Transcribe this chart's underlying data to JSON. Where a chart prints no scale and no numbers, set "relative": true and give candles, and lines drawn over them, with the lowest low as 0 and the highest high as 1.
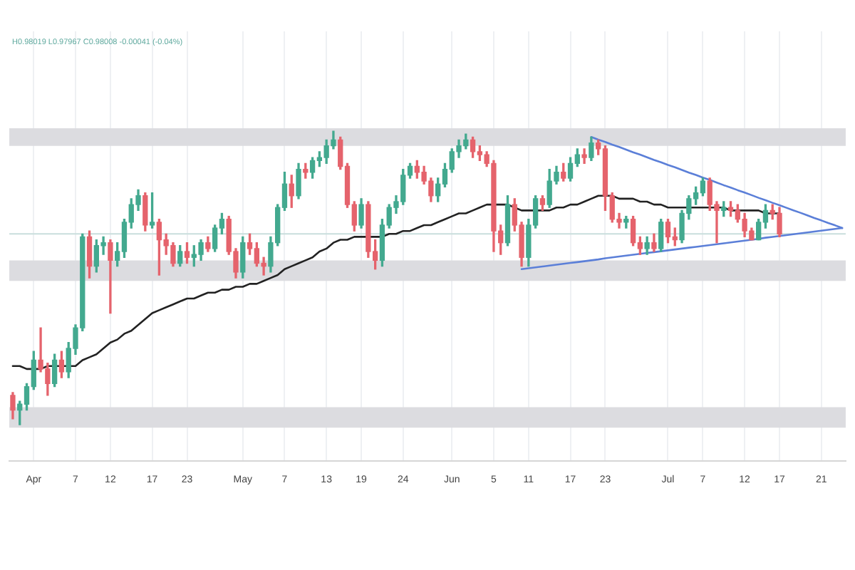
{
  "chart_data": {
    "type": "candlestick",
    "relative": true,
    "categories": [
      null,
      null,
      null,
      "Apr",
      null,
      null,
      null,
      null,
      null,
      "7",
      null,
      null,
      null,
      null,
      "12",
      null,
      null,
      null,
      null,
      null,
      "17",
      null,
      null,
      null,
      null,
      "23",
      null,
      null,
      null,
      null,
      null,
      null,
      null,
      "May",
      null,
      null,
      null,
      null,
      null,
      "7",
      null,
      null,
      null,
      null,
      null,
      "13",
      null,
      null,
      null,
      null,
      "19",
      null,
      null,
      null,
      null,
      null,
      "24",
      null,
      null,
      null,
      null,
      null,
      null,
      "Jun",
      null,
      null,
      null,
      null,
      null,
      "5",
      null,
      null,
      null,
      null,
      "11",
      null,
      null,
      null,
      null,
      null,
      "17",
      null,
      null,
      null,
      null,
      "23",
      null,
      null,
      null,
      null,
      null,
      null,
      null,
      null,
      "Jul",
      null,
      null,
      null,
      null,
      "7",
      null,
      null,
      null,
      null,
      null,
      "12",
      null,
      null,
      null,
      null,
      "17",
      null,
      null,
      null,
      null,
      null,
      "21",
      null,
      null,
      null
    ],
    "series": [
      {
        "ohlc": [
          [
            0.1,
            0.11,
            0.02,
            0.05
          ],
          [
            0.05,
            0.08,
            0,
            0.07
          ],
          [
            0.07,
            0.14,
            0.05,
            0.13
          ],
          [
            0.13,
            0.25,
            0.12,
            0.22
          ],
          [
            0.22,
            0.33,
            0.18,
            0.19
          ],
          [
            0.19,
            0.21,
            0.1,
            0.14
          ],
          [
            0.14,
            0.24,
            0.13,
            0.22
          ],
          [
            0.22,
            0.25,
            0.16,
            0.18
          ],
          [
            0.18,
            0.28,
            0.16,
            0.26
          ],
          [
            0.26,
            0.34,
            0.24,
            0.33
          ],
          [
            0.33,
            0.65,
            0.32,
            0.64
          ],
          [
            0.64,
            0.66,
            0.5,
            0.54
          ],
          [
            0.54,
            0.63,
            0.52,
            0.61
          ],
          [
            0.61,
            0.64,
            0.58,
            0.62
          ],
          [
            0.62,
            0.63,
            0.38,
            0.56
          ],
          [
            0.56,
            0.62,
            0.54,
            0.59
          ],
          [
            0.59,
            0.7,
            0.57,
            0.69
          ],
          [
            0.69,
            0.77,
            0.67,
            0.75
          ],
          [
            0.75,
            0.8,
            0.73,
            0.78
          ],
          [
            0.78,
            0.79,
            0.66,
            0.68
          ],
          [
            0.68,
            0.79,
            0.67,
            0.69
          ],
          [
            0.69,
            0.7,
            0.51,
            0.63
          ],
          [
            0.63,
            0.65,
            0.58,
            0.61
          ],
          [
            0.61,
            0.62,
            0.54,
            0.55
          ],
          [
            0.55,
            0.61,
            0.54,
            0.59
          ],
          [
            0.59,
            0.62,
            0.55,
            0.57
          ],
          [
            0.57,
            0.61,
            0.54,
            0.58
          ],
          [
            0.58,
            0.63,
            0.56,
            0.62
          ],
          [
            0.62,
            0.64,
            0.59,
            0.6
          ],
          [
            0.6,
            0.68,
            0.59,
            0.67
          ],
          [
            0.67,
            0.72,
            0.65,
            0.7
          ],
          [
            0.7,
            0.71,
            0.58,
            0.59
          ],
          [
            0.59,
            0.6,
            0.5,
            0.52
          ],
          [
            0.52,
            0.64,
            0.5,
            0.62
          ],
          [
            0.62,
            0.65,
            0.58,
            0.6
          ],
          [
            0.6,
            0.62,
            0.54,
            0.55
          ],
          [
            0.55,
            0.57,
            0.51,
            0.54
          ],
          [
            0.54,
            0.64,
            0.52,
            0.62
          ],
          [
            0.62,
            0.75,
            0.61,
            0.74
          ],
          [
            0.74,
            0.86,
            0.73,
            0.82
          ],
          [
            0.82,
            0.85,
            0.74,
            0.78
          ],
          [
            0.78,
            0.89,
            0.77,
            0.87
          ],
          [
            0.87,
            0.89,
            0.84,
            0.86
          ],
          [
            0.86,
            0.91,
            0.84,
            0.9
          ],
          [
            0.9,
            0.93,
            0.88,
            0.91
          ],
          [
            0.91,
            0.97,
            0.89,
            0.95
          ],
          [
            0.95,
            1,
            0.94,
            0.97
          ],
          [
            0.97,
            0.98,
            0.87,
            0.88
          ],
          [
            0.88,
            0.89,
            0.74,
            0.75
          ],
          [
            0.75,
            0.76,
            0.66,
            0.68
          ],
          [
            0.68,
            0.77,
            0.67,
            0.75
          ],
          [
            0.75,
            0.76,
            0.57,
            0.59
          ],
          [
            0.59,
            0.63,
            0.53,
            0.56
          ],
          [
            0.56,
            0.7,
            0.54,
            0.68
          ],
          [
            0.68,
            0.75,
            0.67,
            0.74
          ],
          [
            0.74,
            0.78,
            0.72,
            0.76
          ],
          [
            0.76,
            0.87,
            0.75,
            0.85
          ],
          [
            0.85,
            0.89,
            0.84,
            0.88
          ],
          [
            0.88,
            0.9,
            0.84,
            0.86
          ],
          [
            0.86,
            0.88,
            0.82,
            0.83
          ],
          [
            0.83,
            0.84,
            0.76,
            0.78
          ],
          [
            0.78,
            0.84,
            0.76,
            0.82
          ],
          [
            0.82,
            0.89,
            0.81,
            0.87
          ],
          [
            0.87,
            0.94,
            0.86,
            0.93
          ],
          [
            0.93,
            0.97,
            0.91,
            0.95
          ],
          [
            0.95,
            0.99,
            0.94,
            0.97
          ],
          [
            0.97,
            0.98,
            0.91,
            0.93
          ],
          [
            0.93,
            0.95,
            0.9,
            0.92
          ],
          [
            0.92,
            0.93,
            0.88,
            0.89
          ],
          [
            0.89,
            0.9,
            0.59,
            0.66
          ],
          [
            0.66,
            0.68,
            0.58,
            0.62
          ],
          [
            0.62,
            0.78,
            0.61,
            0.75
          ],
          [
            0.75,
            0.77,
            0.66,
            0.68
          ],
          [
            0.68,
            0.69,
            0.54,
            0.57
          ],
          [
            0.57,
            0.7,
            0.54,
            0.68
          ],
          [
            0.68,
            0.78,
            0.67,
            0.77
          ],
          [
            0.77,
            0.78,
            0.73,
            0.75
          ],
          [
            0.75,
            0.87,
            0.74,
            0.83
          ],
          [
            0.83,
            0.88,
            0.82,
            0.86
          ],
          [
            0.86,
            0.89,
            0.83,
            0.84
          ],
          [
            0.84,
            0.91,
            0.83,
            0.89
          ],
          [
            0.89,
            0.94,
            0.88,
            0.92
          ],
          [
            0.92,
            0.94,
            0.89,
            0.91
          ],
          [
            0.91,
            0.98,
            0.9,
            0.96
          ],
          [
            0.96,
            0.97,
            0.92,
            0.94
          ],
          [
            0.94,
            0.95,
            0.73,
            0.78
          ],
          [
            0.78,
            0.79,
            0.69,
            0.7
          ],
          [
            0.7,
            0.72,
            0.67,
            0.69
          ],
          [
            0.69,
            0.71,
            0.67,
            0.7
          ],
          [
            0.7,
            0.71,
            0.61,
            0.62
          ],
          [
            0.62,
            0.64,
            0.58,
            0.6
          ],
          [
            0.6,
            0.64,
            0.58,
            0.62
          ],
          [
            0.62,
            0.65,
            0.59,
            0.6
          ],
          [
            0.6,
            0.7,
            0.59,
            0.69
          ],
          [
            0.69,
            0.7,
            0.62,
            0.64
          ],
          [
            0.64,
            0.67,
            0.61,
            0.63
          ],
          [
            0.63,
            0.73,
            0.62,
            0.72
          ],
          [
            0.72,
            0.78,
            0.7,
            0.77
          ],
          [
            0.77,
            0.81,
            0.75,
            0.79
          ],
          [
            0.79,
            0.84,
            0.78,
            0.83
          ],
          [
            0.83,
            0.84,
            0.73,
            0.75
          ],
          [
            0.75,
            0.76,
            0.62,
            0.73
          ],
          [
            0.73,
            0.76,
            0.71,
            0.74
          ],
          [
            0.74,
            0.76,
            0.71,
            0.73
          ],
          [
            0.73,
            0.75,
            0.69,
            0.7
          ],
          [
            0.7,
            0.72,
            0.64,
            0.66
          ],
          [
            0.66,
            0.67,
            0.63,
            0.63
          ],
          [
            0.63,
            0.7,
            0.63,
            0.69
          ],
          [
            0.69,
            0.75,
            0.67,
            0.73
          ],
          [
            0.73,
            0.75,
            0.7,
            0.72
          ],
          [
            0.72,
            0.74,
            0.64,
            0.65
          ],
          null,
          null,
          null,
          null,
          null,
          null,
          null,
          null,
          null
        ],
        "colors": [
          "#e5636c",
          "#43a98f",
          "#43a98f",
          "#43a98f",
          "#e5636c",
          "#e5636c",
          "#43a98f",
          "#e5636c",
          "#43a98f",
          "#43a98f",
          "#43a98f",
          "#e5636c",
          "#43a98f",
          "#43a98f",
          "#e5636c",
          "#43a98f",
          "#43a98f",
          "#43a98f",
          "#43a98f",
          "#e5636c",
          "#43a98f",
          "#e5636c",
          "#e5636c",
          "#e5636c",
          "#43a98f",
          "#e5636c",
          "#43a98f",
          "#43a98f",
          "#e5636c",
          "#43a98f",
          "#43a98f",
          "#e5636c",
          "#e5636c",
          "#43a98f",
          "#e5636c",
          "#e5636c",
          "#e5636c",
          "#43a98f",
          "#43a98f",
          "#43a98f",
          "#e5636c",
          "#43a98f",
          "#e5636c",
          "#43a98f",
          "#43a98f",
          "#43a98f",
          "#43a98f",
          "#e5636c",
          "#e5636c",
          "#e5636c",
          "#43a98f",
          "#e5636c",
          "#e5636c",
          "#43a98f",
          "#43a98f",
          "#43a98f",
          "#43a98f",
          "#43a98f",
          "#e5636c",
          "#e5636c",
          "#e5636c",
          "#43a98f",
          "#43a98f",
          "#43a98f",
          "#43a98f",
          "#43a98f",
          "#e5636c",
          "#e5636c",
          "#e5636c",
          "#e5636c",
          "#e5636c",
          "#43a98f",
          "#e5636c",
          "#e5636c",
          "#43a98f",
          "#43a98f",
          "#e5636c",
          "#43a98f",
          "#43a98f",
          "#e5636c",
          "#43a98f",
          "#43a98f",
          "#e5636c",
          "#43a98f",
          "#e5636c",
          "#e5636c",
          "#e5636c",
          "#e5636c",
          "#43a98f",
          "#e5636c",
          "#e5636c",
          "#43a98f",
          "#e5636c",
          "#43a98f",
          "#e5636c",
          "#e5636c",
          "#43a98f",
          "#43a98f",
          "#43a98f",
          "#43a98f",
          "#e5636c",
          "#e5636c",
          "#43a98f",
          "#e5636c",
          "#e5636c",
          "#e5636c",
          "#e5636c",
          "#43a98f",
          "#43a98f",
          "#e5636c",
          "#e5636c",
          null,
          null,
          null,
          null,
          null,
          null,
          null,
          null,
          null
        ]
      },
      {
        "type": "line",
        "color": "#222222",
        "values": [
          0.2,
          0.2,
          0.19,
          0.19,
          0.19,
          0.2,
          0.2,
          0.2,
          0.2,
          0.2,
          0.22,
          0.23,
          0.24,
          0.26,
          0.28,
          0.29,
          0.31,
          0.32,
          0.34,
          0.36,
          0.38,
          0.39,
          0.4,
          0.41,
          0.42,
          0.43,
          0.43,
          0.44,
          0.45,
          0.45,
          0.46,
          0.46,
          0.47,
          0.47,
          0.48,
          0.48,
          0.49,
          0.5,
          0.51,
          0.53,
          0.54,
          0.55,
          0.56,
          0.57,
          0.59,
          0.6,
          0.62,
          0.63,
          0.63,
          0.64,
          0.64,
          0.64,
          0.64,
          0.64,
          0.65,
          0.65,
          0.66,
          0.66,
          0.67,
          0.68,
          0.68,
          0.69,
          0.7,
          0.71,
          0.72,
          0.72,
          0.73,
          0.74,
          0.75,
          0.75,
          0.75,
          0.75,
          0.74,
          0.73,
          0.73,
          0.73,
          0.73,
          0.73,
          0.74,
          0.74,
          0.75,
          0.75,
          0.76,
          0.77,
          0.78,
          0.78,
          0.78,
          0.77,
          0.77,
          0.77,
          0.76,
          0.76,
          0.75,
          0.75,
          0.74,
          0.74,
          0.74,
          0.74,
          0.74,
          0.74,
          0.74,
          0.74,
          0.74,
          0.73,
          0.73,
          0.73,
          0.73,
          0.73,
          0.72,
          0.72,
          0.72,
          null,
          null,
          null,
          null,
          null,
          null,
          null,
          null,
          null
        ]
      },
      {
        "type": "line",
        "color": "#5b7fd8",
        "values": [
          null,
          null,
          null,
          null,
          null,
          null,
          null,
          null,
          null,
          null,
          null,
          null,
          null,
          null,
          null,
          null,
          null,
          null,
          null,
          null,
          null,
          null,
          null,
          null,
          null,
          null,
          null,
          null,
          null,
          null,
          null,
          null,
          null,
          null,
          null,
          null,
          null,
          null,
          null,
          null,
          null,
          null,
          null,
          null,
          null,
          null,
          null,
          null,
          null,
          null,
          null,
          null,
          null,
          null,
          null,
          null,
          null,
          null,
          null,
          null,
          null,
          null,
          null,
          null,
          null,
          null,
          null,
          null,
          null,
          null,
          null,
          null,
          null,
          null,
          null,
          null,
          null,
          null,
          null,
          null,
          null,
          null,
          null,
          0.98,
          0.971,
          0.963,
          0.954,
          0.946,
          0.937,
          0.928,
          0.92,
          0.911,
          0.902,
          0.894,
          0.885,
          0.877,
          0.868,
          0.859,
          0.851,
          0.842,
          0.834,
          0.825,
          0.816,
          0.808,
          0.799,
          0.791,
          0.782,
          0.773,
          0.765,
          0.756,
          0.748,
          0.739,
          0.73,
          0.722,
          0.713,
          0.704,
          0.696,
          0.687,
          0.679,
          0.67
        ]
      },
      {
        "type": "line",
        "color": "#5b7fd8",
        "values": [
          null,
          null,
          null,
          null,
          null,
          null,
          null,
          null,
          null,
          null,
          null,
          null,
          null,
          null,
          null,
          null,
          null,
          null,
          null,
          null,
          null,
          null,
          null,
          null,
          null,
          null,
          null,
          null,
          null,
          null,
          null,
          null,
          null,
          null,
          null,
          null,
          null,
          null,
          null,
          null,
          null,
          null,
          null,
          null,
          null,
          null,
          null,
          null,
          null,
          null,
          null,
          null,
          null,
          null,
          null,
          null,
          null,
          null,
          null,
          null,
          null,
          null,
          null,
          null,
          null,
          null,
          null,
          null,
          null,
          null,
          null,
          null,
          null,
          0.53,
          0.533,
          0.536,
          0.539,
          0.542,
          0.545,
          0.548,
          0.551,
          0.554,
          0.557,
          0.56,
          0.563,
          0.567,
          0.57,
          0.573,
          0.576,
          0.579,
          0.582,
          0.585,
          0.588,
          0.591,
          0.594,
          0.597,
          0.6,
          0.603,
          0.606,
          0.609,
          0.612,
          0.615,
          0.618,
          0.621,
          0.624,
          0.627,
          0.63,
          0.633,
          0.637,
          0.64,
          0.643,
          0.646,
          0.649,
          0.652,
          0.655,
          0.658,
          0.661,
          0.664,
          0.667,
          0.67
        ]
      }
    ],
    "bands": [
      {
        "axis": "y",
        "from": 0.95,
        "to": 1.01,
        "color": "#dcdce0"
      },
      {
        "axis": "y",
        "from": 0.49,
        "to": 0.56,
        "color": "#dcdce0"
      },
      {
        "axis": "y",
        "from": -0.01,
        "to": 0.06,
        "color": "#dcdce0"
      }
    ],
    "ref_lines": [
      {
        "axis": "y",
        "value": 0.65,
        "color": "#c9dedc"
      }
    ],
    "grid": "x",
    "annotations": [
      "H0.98019 L0.97967 C0.98008 -0.00041 (-0.04%)"
    ]
  }
}
